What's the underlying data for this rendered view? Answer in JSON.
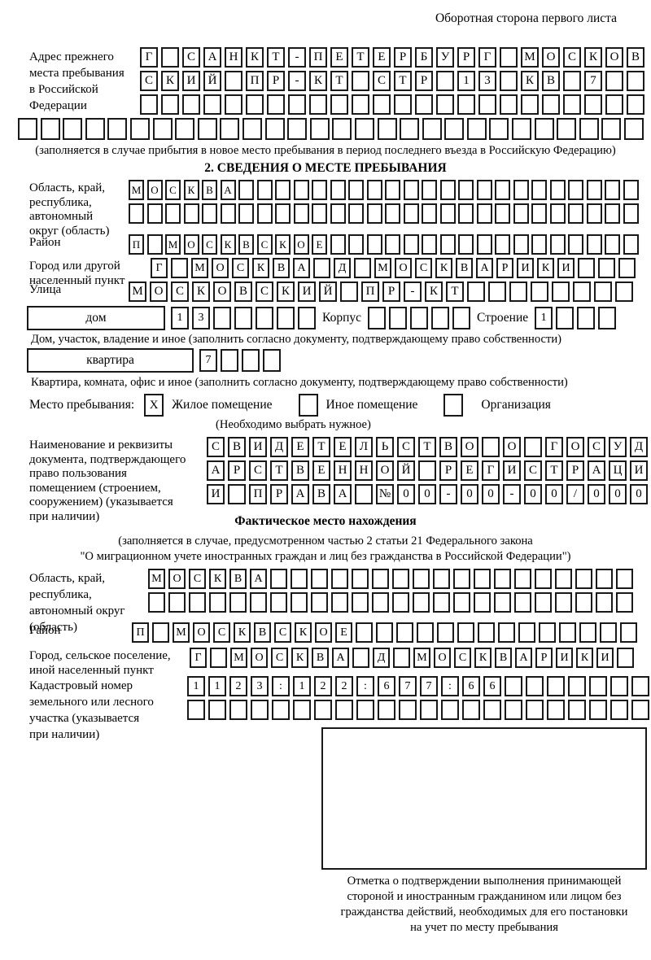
{
  "header_note": "Оборотная сторона первого листа",
  "prev_address": {
    "label": "Адрес прежнего\nместа пребывания\nв Российской\nФедерации",
    "rows": [
      {
        "text": "Г САНКТ-ПЕТЕРБУРГ МОСКОВ",
        "count": 24
      },
      {
        "text": "СКИЙ ПР-КТ СТР 13 КВ 7",
        "count": 24
      },
      {
        "text": "",
        "count": 24
      },
      {
        "text": "",
        "count": 28
      }
    ],
    "note": "(заполняется в случае прибытия в новое место пребывания в период последнего въезда в Российскую Федерацию)"
  },
  "section2": {
    "title": "2. СВЕДЕНИЯ О МЕСТЕ ПРЕБЫВАНИЯ",
    "oblast": {
      "label": "Область, край,\nреспублика,\nавтономный\nокруг (область)",
      "rows": [
        {
          "text": "МОСКВА",
          "count": 28
        },
        {
          "text": "",
          "count": 28
        }
      ]
    },
    "raion": {
      "label": "Район",
      "row": {
        "text": "П МОСКВСКОЕ",
        "count": 28
      }
    },
    "gorod": {
      "label": "Город или другой\nнаселенный пункт",
      "row": {
        "text": "Г МОСКВА Д МОСКВАРИКИ",
        "count": 24
      }
    },
    "ulitsa": {
      "label": "Улица",
      "row": {
        "text": "МОСКОВСКИЙ ПР-КТ",
        "count": 24
      }
    },
    "dom": {
      "box_label": "дом",
      "row": {
        "text": "13",
        "count": 7
      },
      "korpus_label": "Корпус",
      "korpus_row": {
        "text": "",
        "count": 5
      },
      "stroenie_label": "Строение",
      "stroenie_row": {
        "text": "1",
        "count": 4
      },
      "note": "Дом, участок, владение и иное (заполнить согласно документу, подтверждающему право собственности)"
    },
    "kvartira": {
      "box_label": "квартира",
      "row": {
        "text": "7",
        "count": 4
      },
      "note": "Квартира, комната, офис и иное (заполнить согласно документу, подтверждающему право собственности)"
    },
    "mesto": {
      "label": "Место пребывания:",
      "opt1_label": "Жилое помещение",
      "opt1_mark": "X",
      "opt2_label": "Иное помещение",
      "opt2_mark": "",
      "opt3_label": "Организация",
      "opt3_mark": "",
      "note": "(Необходимо выбрать нужное)"
    },
    "doc": {
      "label": "Наименование и реквизиты\nдокумента, подтверждающего\nправо пользования\nпомещением (строением,\nсооружением) (указывается\nпри наличии)",
      "rows": [
        {
          "text": "СВИДЕТЕЛЬСТВО О ГОСУД",
          "count": 21
        },
        {
          "text": "АРСТВЕННОЙ РЕГИСТРАЦИ",
          "count": 21
        },
        {
          "text": "И ПРАВА №00-00-00/000",
          "count": 21
        }
      ]
    }
  },
  "factual": {
    "title": "Фактическое место нахождения",
    "note_line1": "(заполняется в случае, предусмотренном частью 2 статьи 21 Федерального закона",
    "note_line2": "\"О миграционном учете иностранных граждан и лиц без гражданства в Российской Федерации\")",
    "oblast": {
      "label": "Область, край,\nреспублика,\nавтономный округ\n(область)",
      "rows": [
        {
          "text": "МОСКВА",
          "count": 24
        },
        {
          "text": "",
          "count": 24
        }
      ]
    },
    "raion": {
      "label": "Район",
      "row": {
        "text": "П МОСКВСКОЕ",
        "count": 25
      }
    },
    "gorod": {
      "label": "Город, сельское поселение,\nиной населенный пункт",
      "row": {
        "text": "Г МОСКВА Д МОСКВАРИКИ",
        "count": 22
      }
    },
    "cadastre": {
      "label": "Кадастровый номер\nземельного или лесного\nучастка (указывается\nпри наличии)",
      "rows": [
        {
          "text": "1123:122:677:66",
          "count": 22
        },
        {
          "text": "",
          "count": 22
        }
      ]
    },
    "stamp_note": "Отметка о подтверждении выполнения принимающей\nстороной и иностранным гражданином или лицом без\nгражданства действий, необходимых для его постановки\nна учет по месту пребывания"
  }
}
